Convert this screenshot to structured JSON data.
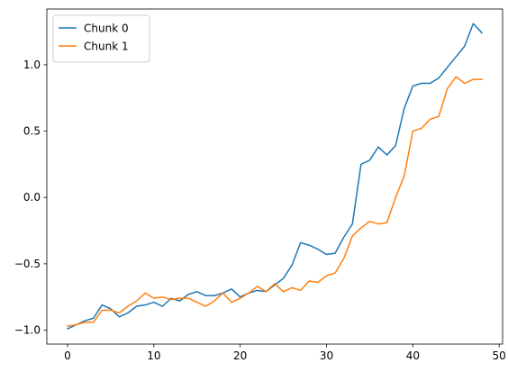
{
  "chart_data": {
    "type": "line",
    "title": "",
    "xlabel": "",
    "ylabel": "",
    "xlim": [
      -2.4,
      50.4
    ],
    "ylim": [
      -1.105,
      1.42
    ],
    "grid": false,
    "legend_position": "top-left",
    "x_ticks": [
      0,
      10,
      20,
      30,
      40,
      50
    ],
    "x_tick_labels": [
      "0",
      "10",
      "20",
      "30",
      "40",
      "50"
    ],
    "y_ticks": [
      -1.0,
      -0.5,
      0.0,
      0.5,
      1.0
    ],
    "y_tick_labels": [
      "−1.0",
      "−0.5",
      "0.0",
      "0.5",
      "1.0"
    ],
    "x": [
      0,
      1,
      2,
      3,
      4,
      5,
      6,
      7,
      8,
      9,
      10,
      11,
      12,
      13,
      14,
      15,
      16,
      17,
      18,
      19,
      20,
      21,
      22,
      23,
      24,
      25,
      26,
      27,
      28,
      29,
      30,
      31,
      32,
      33,
      34,
      35,
      36,
      37,
      38,
      39,
      40,
      41,
      42,
      43,
      44,
      45,
      46,
      47,
      48
    ],
    "series": [
      {
        "name": "Chunk 0",
        "color": "#1f77b4",
        "values": [
          -0.99,
          -0.96,
          -0.93,
          -0.91,
          -0.81,
          -0.84,
          -0.9,
          -0.87,
          -0.82,
          -0.81,
          -0.79,
          -0.82,
          -0.76,
          -0.78,
          -0.73,
          -0.71,
          -0.74,
          -0.74,
          -0.72,
          -0.69,
          -0.75,
          -0.72,
          -0.7,
          -0.71,
          -0.66,
          -0.61,
          -0.51,
          -0.34,
          -0.36,
          -0.39,
          -0.43,
          -0.42,
          -0.3,
          -0.2,
          0.25,
          0.28,
          0.38,
          0.32,
          0.39,
          0.67,
          0.84,
          0.86,
          0.86,
          0.9,
          0.98,
          1.06,
          1.14,
          1.31,
          1.24
        ]
      },
      {
        "name": "Chunk 1",
        "color": "#ff7f0e",
        "values": [
          -0.97,
          -0.96,
          -0.94,
          -0.94,
          -0.85,
          -0.85,
          -0.87,
          -0.82,
          -0.78,
          -0.72,
          -0.76,
          -0.75,
          -0.77,
          -0.76,
          -0.76,
          -0.79,
          -0.82,
          -0.78,
          -0.72,
          -0.79,
          -0.76,
          -0.72,
          -0.67,
          -0.71,
          -0.65,
          -0.71,
          -0.68,
          -0.7,
          -0.63,
          -0.64,
          -0.59,
          -0.57,
          -0.46,
          -0.29,
          -0.23,
          -0.18,
          -0.2,
          -0.19,
          0.0,
          0.16,
          0.5,
          0.52,
          0.59,
          0.61,
          0.82,
          0.91,
          0.86,
          0.89,
          0.89
        ]
      }
    ]
  }
}
